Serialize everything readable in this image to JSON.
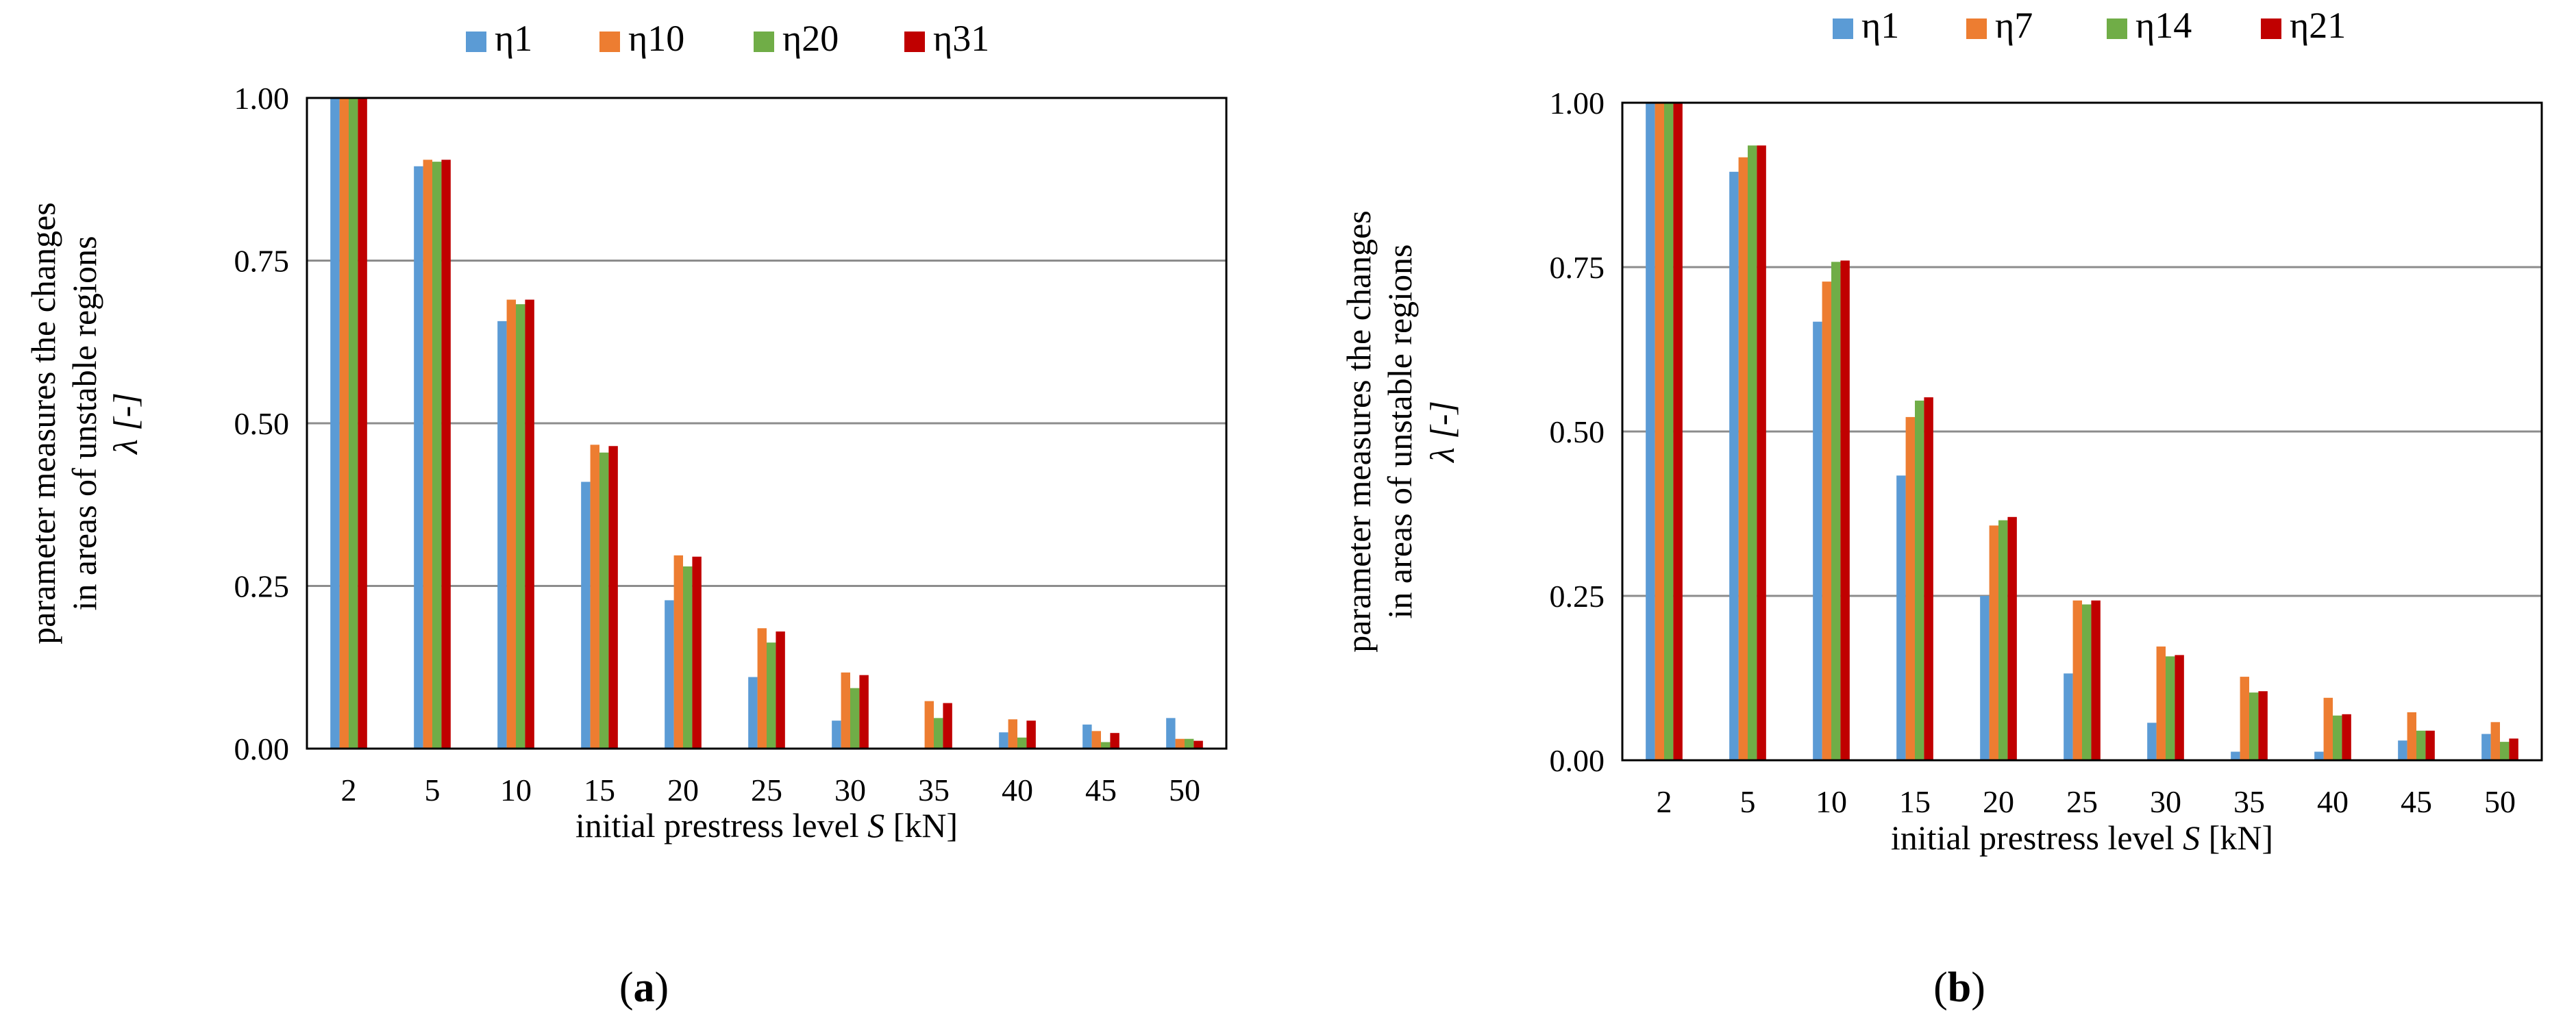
{
  "charts": [
    {
      "id": "a",
      "panel_label": "a",
      "chart_data": {
        "type": "bar",
        "title": "",
        "xlabel_prefix": "initial prestress level ",
        "xlabel_var": "S",
        "xlabel_suffix": " [kN]",
        "ylabel_lines": [
          "parameter measures the changes",
          "in areas of unstable regions",
          "λ [-]"
        ],
        "categories": [
          "2",
          "5",
          "10",
          "15",
          "20",
          "25",
          "30",
          "35",
          "40",
          "45",
          "50"
        ],
        "ylim": [
          0,
          1
        ],
        "yticks": [
          "0.00",
          "0.25",
          "0.50",
          "0.75",
          "1.00"
        ],
        "ytick_values": [
          0,
          0.25,
          0.5,
          0.75,
          1.0
        ],
        "legend_position": "top",
        "series": [
          {
            "name": "η1",
            "color": "#5B9BD5",
            "values": [
              1.0,
              0.895,
              0.657,
              0.41,
              0.228,
              0.11,
              0.043,
              0.0,
              0.025,
              0.037,
              0.047
            ]
          },
          {
            "name": "η10",
            "color": "#ED7D31",
            "values": [
              1.0,
              0.905,
              0.69,
              0.467,
              0.297,
              0.185,
              0.117,
              0.073,
              0.045,
              0.027,
              0.015
            ]
          },
          {
            "name": "η20",
            "color": "#70AD47",
            "values": [
              1.0,
              0.902,
              0.683,
              0.455,
              0.28,
              0.163,
              0.093,
              0.047,
              0.017,
              0.01,
              0.015
            ]
          },
          {
            "name": "η31",
            "color": "#C00000",
            "values": [
              1.0,
              0.905,
              0.69,
              0.465,
              0.295,
              0.18,
              0.113,
              0.07,
              0.043,
              0.024,
              0.012
            ]
          }
        ]
      }
    },
    {
      "id": "b",
      "panel_label": "b",
      "chart_data": {
        "type": "bar",
        "title": "",
        "xlabel_prefix": "initial prestress level ",
        "xlabel_var": "S",
        "xlabel_suffix": " [kN]",
        "ylabel_lines": [
          "parameter measures the changes",
          "in areas of unstable regions",
          "λ [-]"
        ],
        "categories": [
          "2",
          "5",
          "10",
          "15",
          "20",
          "25",
          "30",
          "35",
          "40",
          "45",
          "50"
        ],
        "ylim": [
          0,
          1
        ],
        "yticks": [
          "0.00",
          "0.25",
          "0.50",
          "0.75",
          "1.00"
        ],
        "ytick_values": [
          0,
          0.25,
          0.5,
          0.75,
          1.0
        ],
        "legend_position": "top",
        "series": [
          {
            "name": "η1",
            "color": "#5B9BD5",
            "values": [
              1.0,
              0.895,
              0.667,
              0.433,
              0.25,
              0.132,
              0.057,
              0.013,
              0.013,
              0.03,
              0.04
            ]
          },
          {
            "name": "η7",
            "color": "#ED7D31",
            "values": [
              1.0,
              0.917,
              0.728,
              0.522,
              0.357,
              0.243,
              0.173,
              0.127,
              0.095,
              0.073,
              0.058
            ]
          },
          {
            "name": "η14",
            "color": "#70AD47",
            "values": [
              1.0,
              0.935,
              0.758,
              0.547,
              0.365,
              0.237,
              0.158,
              0.103,
              0.068,
              0.045,
              0.028
            ]
          },
          {
            "name": "η21",
            "color": "#C00000",
            "values": [
              1.0,
              0.935,
              0.76,
              0.552,
              0.37,
              0.243,
              0.16,
              0.105,
              0.07,
              0.045,
              0.033
            ]
          }
        ]
      }
    }
  ]
}
